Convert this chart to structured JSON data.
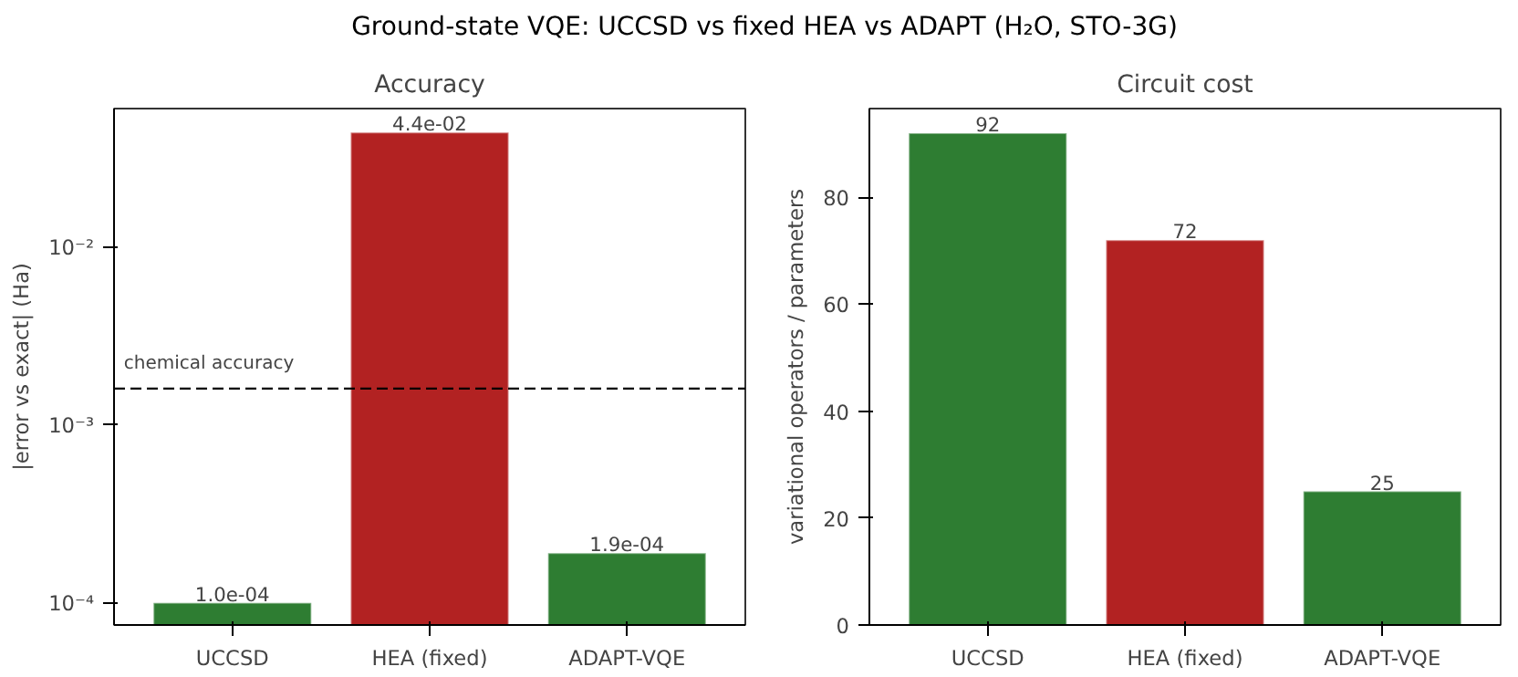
{
  "chart_data": [
    {
      "type": "bar",
      "title": "Accuracy",
      "ylabel": "|error vs exact| (Ha)",
      "categories": [
        "UCCSD",
        "HEA (fixed)",
        "ADAPT-VQE"
      ],
      "values": [
        0.0001,
        0.044,
        0.00019
      ],
      "colors": [
        "#2e7d32",
        "#b22222",
        "#2e7d32"
      ],
      "value_labels": [
        "1.0e-04",
        "4.4e-02",
        "1.9e-04"
      ],
      "log": "y",
      "ylim": [
        7.5e-05,
        0.06
      ],
      "yticks": [
        {
          "value": 0.0001,
          "label": "10⁻⁴"
        },
        {
          "value": 0.001,
          "label": "10⁻³"
        },
        {
          "value": 0.01,
          "label": "10⁻²"
        }
      ],
      "ref_lines": [
        {
          "axis": "y",
          "value": 0.0016,
          "label": "chemical accuracy",
          "color": "#000000",
          "line_style": "dashed"
        }
      ],
      "grid": false,
      "annotations": [
        "Ground-state VQE: UCCSD vs fixed HEA vs ADAPT (H₂O, STO-3G)"
      ]
    },
    {
      "type": "bar",
      "title": "Circuit cost",
      "ylabel": "variational operators / parameters",
      "categories": [
        "UCCSD",
        "HEA (fixed)",
        "ADAPT-VQE"
      ],
      "values": [
        92,
        72,
        25
      ],
      "colors": [
        "#2e7d32",
        "#b22222",
        "#2e7d32"
      ],
      "data_labels": true,
      "ylim": [
        0,
        96.6
      ],
      "yticks": [
        0,
        20,
        40,
        60,
        80
      ],
      "grid": false
    }
  ]
}
